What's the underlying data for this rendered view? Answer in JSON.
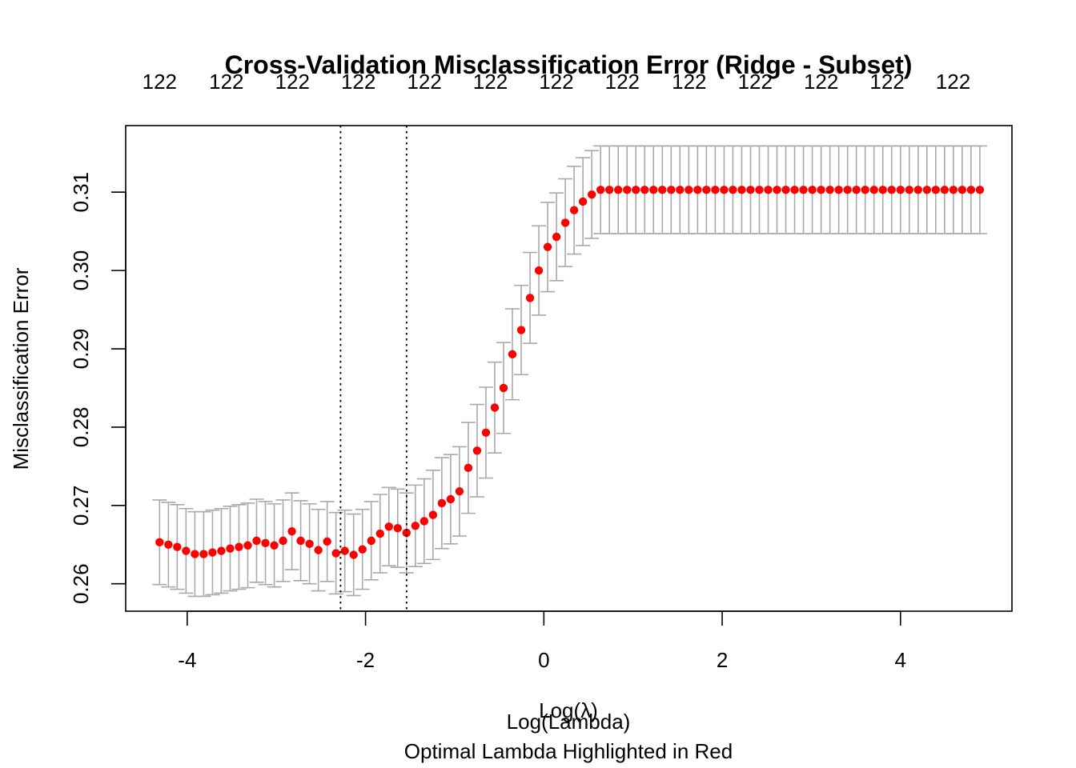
{
  "chart_data": {
    "type": "scatter",
    "title": "Cross-Validation Misclassification Error (Ridge - Subset)",
    "xlabel": "Log(λ)",
    "xlabel_overlay": "Log(Lambda)",
    "subtitle": "Optimal Lambda Highlighted in Red",
    "ylabel": "Misclassification Error",
    "xlim": [
      -4.69,
      5.25
    ],
    "ylim": [
      0.2565,
      0.3185
    ],
    "x_ticks": [
      -4,
      -2,
      0,
      2,
      4
    ],
    "x_tick_labels": [
      "-4",
      "-2",
      "0",
      "2",
      "4"
    ],
    "y_ticks": [
      0.26,
      0.27,
      0.28,
      0.29,
      0.3,
      0.31
    ],
    "y_tick_labels": [
      "0.26",
      "0.27",
      "0.28",
      "0.29",
      "0.30",
      "0.31"
    ],
    "top_axis_ticks": [
      -4.31,
      -3.56,
      -2.82,
      -2.08,
      -1.34,
      -0.6,
      0.14,
      0.88,
      1.63,
      2.37,
      3.11,
      3.85,
      4.59
    ],
    "top_axis_labels": [
      "122",
      "122",
      "122",
      "122",
      "122",
      "122",
      "122",
      "122",
      "122",
      "122",
      "122",
      "122",
      "122"
    ],
    "vlines": [
      -2.28,
      -1.54
    ],
    "series": [
      {
        "x_start": -4.31,
        "x_end": 4.89,
        "values": [
          0.2653,
          0.265,
          0.2647,
          0.2642,
          0.2638,
          0.2638,
          0.264,
          0.2642,
          0.2645,
          0.2647,
          0.2649,
          0.2655,
          0.2652,
          0.2649,
          0.2655,
          0.2667,
          0.2655,
          0.2651,
          0.2643,
          0.2654,
          0.2639,
          0.2642,
          0.2637,
          0.2644,
          0.2655,
          0.2664,
          0.2673,
          0.2671,
          0.2665,
          0.2674,
          0.268,
          0.2688,
          0.2703,
          0.2708,
          0.2718,
          0.2748,
          0.277,
          0.2793,
          0.2825,
          0.285,
          0.2893,
          0.2924,
          0.2965,
          0.3,
          0.303,
          0.3043,
          0.3061,
          0.3077,
          0.3088,
          0.3097,
          0.3103,
          0.3103,
          0.3103,
          0.3103,
          0.3103,
          0.3103,
          0.3103,
          0.3103,
          0.3103,
          0.3103,
          0.3103,
          0.3103,
          0.3103,
          0.3103,
          0.3103,
          0.3103,
          0.3103,
          0.3103,
          0.3103,
          0.3103,
          0.3103,
          0.3103,
          0.3103,
          0.3103,
          0.3103,
          0.3103,
          0.3103,
          0.3103,
          0.3103,
          0.3103,
          0.3103,
          0.3103,
          0.3103,
          0.3103,
          0.3103,
          0.3103,
          0.3103,
          0.3103,
          0.3103,
          0.3103,
          0.3103,
          0.3103,
          0.3103,
          0.3103
        ],
        "error": [
          0.0054,
          0.0054,
          0.0054,
          0.0054,
          0.0054,
          0.0054,
          0.0054,
          0.0054,
          0.0054,
          0.0054,
          0.0054,
          0.0053,
          0.0053,
          0.0053,
          0.0052,
          0.0049,
          0.0051,
          0.0051,
          0.0052,
          0.0051,
          0.0052,
          0.0052,
          0.0052,
          0.0051,
          0.005,
          0.005,
          0.005,
          0.005,
          0.0051,
          0.0052,
          0.0054,
          0.0057,
          0.0058,
          0.0057,
          0.0057,
          0.0058,
          0.0059,
          0.0058,
          0.0058,
          0.0058,
          0.0058,
          0.0057,
          0.0058,
          0.0057,
          0.0057,
          0.0056,
          0.0056,
          0.0056,
          0.0056,
          0.0056,
          0.0056,
          0.0056,
          0.0056,
          0.0056,
          0.0056,
          0.0056,
          0.0056,
          0.0056,
          0.0056,
          0.0056,
          0.0056,
          0.0056,
          0.0056,
          0.0056,
          0.0056,
          0.0056,
          0.0056,
          0.0056,
          0.0056,
          0.0056,
          0.0056,
          0.0056,
          0.0056,
          0.0056,
          0.0056,
          0.0056,
          0.0056,
          0.0056,
          0.0056,
          0.0056,
          0.0056,
          0.0056,
          0.0056,
          0.0056,
          0.0056,
          0.0056,
          0.0056,
          0.0056,
          0.0056,
          0.0056,
          0.0056,
          0.0056,
          0.0056,
          0.0056
        ],
        "point_color": "#ff0000",
        "errorbar_color": "#a9a9a9"
      }
    ],
    "vline_style": "dotted",
    "grid": false,
    "legend": "none"
  }
}
